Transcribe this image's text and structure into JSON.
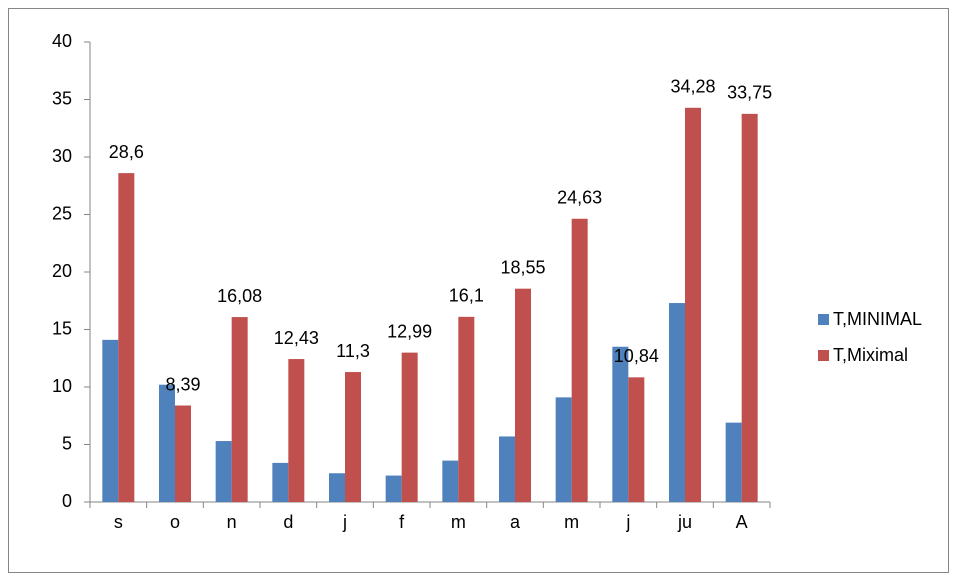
{
  "chart_data": {
    "type": "bar",
    "categories": [
      "s",
      "o",
      "n",
      "d",
      "j",
      "f",
      "m",
      "a",
      "m",
      "j",
      "ju",
      "A"
    ],
    "series": [
      {
        "name": "T,MINIMAL",
        "color": "#4f81bd",
        "values": [
          14.1,
          10.2,
          5.3,
          3.4,
          2.5,
          2.3,
          3.6,
          5.7,
          9.1,
          13.5,
          17.3,
          6.9
        ]
      },
      {
        "name": "T,Miximal",
        "color": "#c0504d",
        "values": [
          28.6,
          8.39,
          16.08,
          12.43,
          11.3,
          12.99,
          16.1,
          18.55,
          24.63,
          10.84,
          34.28,
          33.75
        ],
        "value_labels": [
          "28,6",
          "8,39",
          "16,08",
          "12,43",
          "11,3",
          "12,99",
          "16,1",
          "18,55",
          "24,63",
          "10,84",
          "34,28",
          "33,75"
        ]
      }
    ],
    "ylim": [
      0,
      40
    ],
    "yticks": [
      0,
      5,
      10,
      15,
      20,
      25,
      30,
      35,
      40
    ],
    "grid": false,
    "legend": "right"
  }
}
